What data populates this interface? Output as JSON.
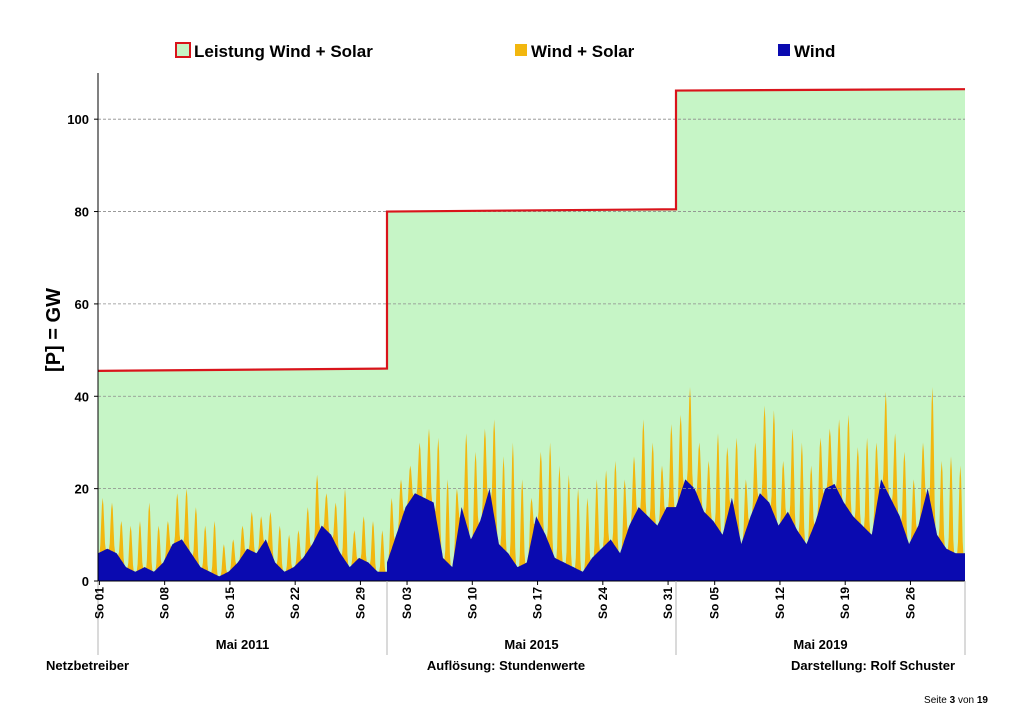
{
  "legend": {
    "capacity": "Leistung Wind + Solar",
    "wind_solar": "Wind + Solar",
    "wind": "Wind"
  },
  "colors": {
    "capacity_line": "#d9141b",
    "capacity_fill": "#c6f5c6",
    "wind_solar": "#f2b70f",
    "wind": "#0a0ab0"
  },
  "footer": {
    "left": "Netzbetreiber",
    "center": "Auflösung: Stundenwerte",
    "right": "Darstellung: Rolf Schuster"
  },
  "page": {
    "prefix": "Seite",
    "current": "3",
    "middle": "von",
    "total": "19"
  },
  "chart_data": {
    "type": "area",
    "ylabel": "[P]  =  GW",
    "ylim": [
      0,
      110
    ],
    "yticks": [
      0,
      20,
      40,
      60,
      80,
      100
    ],
    "grid": true,
    "legend_position": "top",
    "periods": [
      {
        "label": "Mai 2011",
        "x_ticks": [
          "So 01",
          "So 08",
          "So 15",
          "So 22",
          "So 29"
        ],
        "capacity_gw": [
          45.5,
          46.0
        ],
        "daily_peak_wind_solar_gw": [
          18,
          17,
          13,
          12,
          13,
          17,
          12,
          13,
          19,
          20,
          16,
          12,
          13,
          8,
          9,
          12,
          15,
          14,
          15,
          12,
          10,
          11,
          16,
          23,
          19,
          17,
          20,
          11,
          14,
          13,
          11
        ],
        "daily_wind_gw": [
          6,
          7,
          6,
          3,
          2,
          3,
          2,
          4,
          8,
          9,
          6,
          3,
          2,
          1,
          2,
          4,
          7,
          6,
          9,
          4,
          2,
          3,
          5,
          8,
          12,
          10,
          6,
          3,
          5,
          4,
          2
        ]
      },
      {
        "label": "Mai 2015",
        "x_ticks": [
          "So 03",
          "So 10",
          "So 17",
          "So 24",
          "So 31"
        ],
        "capacity_gw": [
          80.0,
          80.5
        ],
        "daily_peak_wind_solar_gw": [
          18,
          22,
          25,
          30,
          33,
          31,
          22,
          20,
          32,
          28,
          33,
          35,
          27,
          30,
          22,
          18,
          28,
          30,
          25,
          23,
          20,
          18,
          22,
          24,
          26,
          22,
          27,
          35,
          30,
          25,
          34
        ],
        "daily_wind_gw": [
          4,
          10,
          16,
          19,
          18,
          17,
          5,
          3,
          16,
          9,
          13,
          20,
          8,
          6,
          3,
          4,
          14,
          10,
          5,
          4,
          3,
          2,
          5,
          7,
          9,
          6,
          12,
          16,
          14,
          12,
          16
        ]
      },
      {
        "label": "Mai 2019",
        "x_ticks": [
          "So 05",
          "So 12",
          "So 19",
          "So 26"
        ],
        "capacity_gw": [
          106.2,
          106.5
        ],
        "daily_peak_wind_solar_gw": [
          36,
          42,
          30,
          26,
          32,
          29,
          31,
          22,
          30,
          38,
          37,
          26,
          33,
          30,
          25,
          31,
          33,
          35,
          36,
          29,
          31,
          30,
          41,
          32,
          28,
          22,
          30,
          42,
          26,
          27,
          25
        ],
        "daily_wind_gw": [
          16,
          22,
          20,
          15,
          13,
          10,
          18,
          8,
          14,
          19,
          17,
          12,
          15,
          11,
          8,
          13,
          20,
          21,
          17,
          14,
          12,
          10,
          22,
          18,
          14,
          8,
          12,
          20,
          10,
          7,
          6
        ]
      }
    ]
  }
}
